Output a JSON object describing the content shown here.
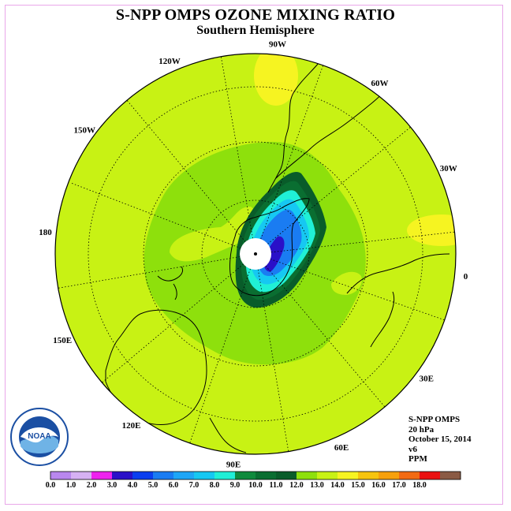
{
  "title": "S-NPP OMPS OZONE MIXING RATIO",
  "subtitle": "Southern Hemisphere",
  "longitude_labels": [
    {
      "text": "0",
      "lon": 0
    },
    {
      "text": "30W",
      "lon": -30
    },
    {
      "text": "60W",
      "lon": -60
    },
    {
      "text": "90W",
      "lon": -90
    },
    {
      "text": "120W",
      "lon": -120
    },
    {
      "text": "150W",
      "lon": -150
    },
    {
      "text": "180",
      "lon": 180
    },
    {
      "text": "150E",
      "lon": 150
    },
    {
      "text": "120E",
      "lon": 120
    },
    {
      "text": "90E",
      "lon": 90
    },
    {
      "text": "60E",
      "lon": 60
    },
    {
      "text": "30E",
      "lon": 30
    }
  ],
  "info": {
    "instrument": "S-NPP OMPS",
    "pressure": "20 hPa",
    "date": "October 15, 2014",
    "version": "v6",
    "units": "PPM"
  },
  "logo": {
    "text": "NOAA"
  },
  "colorbar": {
    "ticks": [
      "0.0",
      "1.0",
      "2.0",
      "3.0",
      "4.0",
      "5.0",
      "6.0",
      "7.0",
      "8.0",
      "9.0",
      "10.0",
      "11.0",
      "12.0",
      "13.0",
      "14.0",
      "15.0",
      "16.0",
      "17.0",
      "18.0"
    ],
    "colors": [
      "#b987ee",
      "#d6b1f3",
      "#ee22ee",
      "#2a10c8",
      "#0b3ef0",
      "#1a7cf2",
      "#1ea6f6",
      "#16c8f2",
      "#20f0d6",
      "#0f8a3c",
      "#0a6e31",
      "#095c2a",
      "#8ee00c",
      "#c8f214",
      "#f6f421",
      "#f6c40e",
      "#f6a00c",
      "#f26a12",
      "#ea1010",
      "#8a5a44"
    ]
  }
}
